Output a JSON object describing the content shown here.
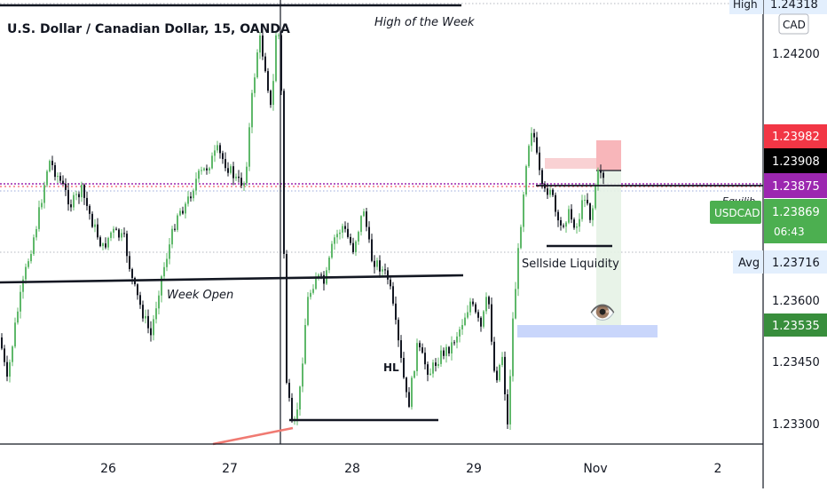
{
  "chart_data": {
    "type": "candlestick",
    "title": "U.S. Dollar / Canadian Dollar, 15, OANDA",
    "symbol": "USDCAD",
    "currency": "CAD",
    "x_tick_labels": [
      "26",
      "27",
      "28",
      "29",
      "Nov",
      "2"
    ],
    "y_tick_labels": [
      "1.24200",
      "1.23600",
      "1.23450",
      "1.23300"
    ],
    "ylim": [
      1.2324,
      1.2433
    ],
    "grid": false,
    "price_tags": [
      {
        "label": "High",
        "value": "1.24318",
        "color": "#e3effd",
        "text_color": "#131722"
      },
      {
        "label": "",
        "value": "1.23982",
        "color": "#f23645",
        "text_color": "#ffffff"
      },
      {
        "label": "",
        "value": "1.23908",
        "color": "#000000",
        "text_color": "#ffffff"
      },
      {
        "label": "",
        "value": "1.23875",
        "color": "#9c27b0",
        "text_color": "#ffffff"
      },
      {
        "label": "USDCAD",
        "value": "1.23869",
        "countdown": "06:43",
        "color": "#4caf50",
        "text_color": "#ffffff"
      },
      {
        "label": "Avg",
        "value": "1.23716",
        "color": "#e3effd",
        "text_color": "#131722"
      },
      {
        "label": "",
        "value": "1.23535",
        "color": "#388e3c",
        "text_color": "#ffffff"
      }
    ],
    "annotations": {
      "high_of_week": "High of the Week",
      "week_open": "Week Open",
      "hl": "HL",
      "sellside_liquidity": "Sellside Liquidity",
      "equilibrium_partial": "Equilib",
      "eye_emoji": "👁️"
    },
    "levels": {
      "high_of_week": 1.2432,
      "week_open": 1.2368,
      "hl_low": 1.2332,
      "sellside_liquidity": 1.23815,
      "avg": 1.23716,
      "target_zone": 1.23535
    },
    "colors": {
      "up_candle": "#26a69a",
      "up_candle_display": "#5fb86a",
      "down_candle": "#131722",
      "short_risk": "#f23645",
      "short_reward": "#4caf50",
      "target_zone": "#2962ff",
      "dotted_level": "#9c27b0"
    }
  }
}
